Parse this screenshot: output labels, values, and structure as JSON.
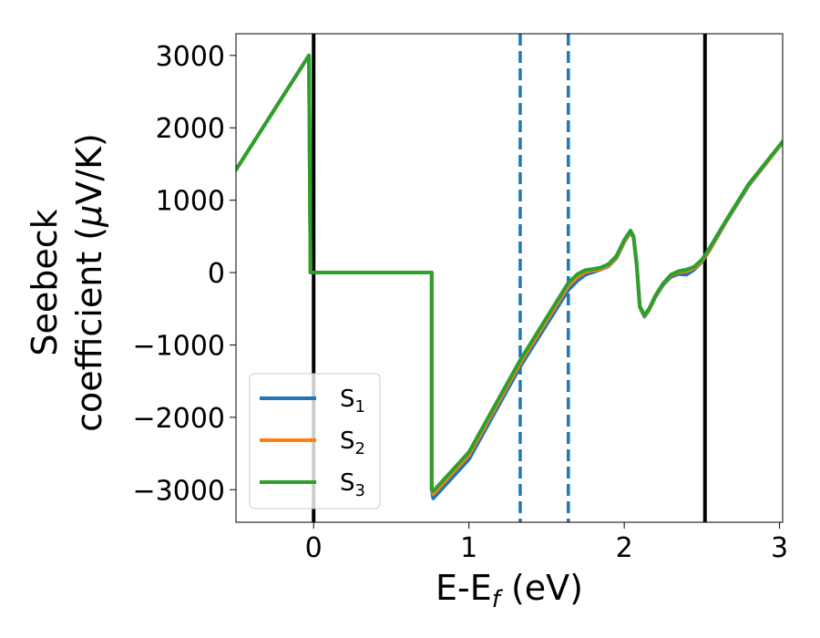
{
  "chart_data": {
    "type": "line",
    "title": "",
    "xlabel": {
      "main": "E-E",
      "sub": "f",
      "suffix": " (eV)"
    },
    "ylabel": {
      "line1": "Seebeck",
      "line2_pre": "coefficient  (",
      "mu": "μ",
      "line2_post": "V/K)"
    },
    "xlim": [
      -0.5,
      3.02
    ],
    "ylim": [
      -3450,
      3300
    ],
    "xticks": [
      0,
      1,
      2,
      3
    ],
    "xtick_labels": [
      "0",
      "1",
      "2",
      "3"
    ],
    "yticks": [
      3000,
      2000,
      1000,
      0,
      -1000,
      -2000,
      -3000
    ],
    "ytick_labels": [
      "3000",
      "2000",
      "1000",
      "0",
      "−1000",
      "−2000",
      "−3000"
    ],
    "grid": false,
    "legend_position": "lower-left",
    "vlines": [
      {
        "x": 0.0,
        "style": "solid",
        "color": "#000000"
      },
      {
        "x": 2.52,
        "style": "solid",
        "color": "#000000"
      },
      {
        "x": 1.33,
        "style": "dashed",
        "color": "#1f77b4"
      },
      {
        "x": 1.64,
        "style": "dashed",
        "color": "#1f77b4"
      }
    ],
    "series": [
      {
        "name": "S1",
        "label_main": "S",
        "label_sub": "1",
        "color": "#1f77b4",
        "x": [
          -0.5,
          -0.03,
          -0.02,
          0.0,
          0.5,
          0.76,
          0.76,
          0.77,
          1.0,
          1.33,
          1.64,
          1.7,
          1.75,
          1.8,
          1.85,
          1.9,
          1.95,
          2.0,
          2.04,
          2.06,
          2.08,
          2.1,
          2.13,
          2.16,
          2.2,
          2.25,
          2.3,
          2.35,
          2.4,
          2.45,
          2.5,
          2.55,
          2.65,
          2.8,
          3.02
        ],
        "y": [
          1420,
          3000,
          0,
          0,
          0,
          0,
          -3000,
          -3120,
          -2580,
          -1300,
          -240,
          -110,
          -30,
          5,
          45,
          90,
          200,
          420,
          560,
          480,
          100,
          -480,
          -610,
          -520,
          -340,
          -170,
          -60,
          -20,
          -30,
          40,
          150,
          310,
          680,
          1200,
          1800
        ]
      },
      {
        "name": "S2",
        "label_main": "S",
        "label_sub": "2",
        "color": "#ff7f0e",
        "x": [
          -0.5,
          -0.03,
          -0.02,
          0.0,
          0.5,
          0.76,
          0.76,
          0.77,
          1.0,
          1.33,
          1.64,
          1.7,
          1.75,
          1.8,
          1.85,
          1.9,
          1.95,
          2.0,
          2.04,
          2.06,
          2.08,
          2.1,
          2.13,
          2.16,
          2.2,
          2.25,
          2.3,
          2.35,
          2.4,
          2.45,
          2.5,
          2.55,
          2.65,
          2.8,
          3.02
        ],
        "y": [
          1420,
          3000,
          0,
          0,
          0,
          0,
          -3000,
          -3060,
          -2520,
          -1250,
          -180,
          -60,
          10,
          30,
          50,
          100,
          210,
          430,
          570,
          490,
          110,
          -470,
          -600,
          -510,
          -330,
          -160,
          -40,
          5,
          20,
          60,
          160,
          320,
          690,
          1210,
          1800
        ]
      },
      {
        "name": "S3",
        "label_main": "S",
        "label_sub": "3",
        "color": "#2ca02c",
        "x": [
          -0.5,
          -0.03,
          -0.02,
          0.0,
          0.5,
          0.76,
          0.76,
          0.77,
          1.0,
          1.33,
          1.64,
          1.7,
          1.75,
          1.8,
          1.85,
          1.9,
          1.95,
          2.0,
          2.04,
          2.06,
          2.08,
          2.1,
          2.13,
          2.16,
          2.2,
          2.25,
          2.3,
          2.35,
          2.4,
          2.45,
          2.5,
          2.55,
          2.65,
          2.8,
          3.02
        ],
        "y": [
          1420,
          3000,
          0,
          0,
          0,
          0,
          -3000,
          -3020,
          -2480,
          -1210,
          -140,
          -20,
          35,
          50,
          70,
          120,
          230,
          450,
          580,
          500,
          120,
          -460,
          -590,
          -500,
          -320,
          -150,
          -30,
          20,
          40,
          80,
          180,
          340,
          700,
          1220,
          1810
        ]
      }
    ]
  }
}
